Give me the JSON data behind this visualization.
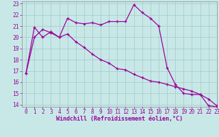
{
  "xlabel": "Windchill (Refroidissement éolien,°C)",
  "bg_color": "#c8e8e8",
  "grid_color": "#aacccc",
  "line_color": "#990099",
  "xlim": [
    -0.5,
    23
  ],
  "ylim": [
    13.8,
    23.2
  ],
  "yticks": [
    14,
    15,
    16,
    17,
    18,
    19,
    20,
    21,
    22,
    23
  ],
  "xticks": [
    0,
    1,
    2,
    3,
    4,
    5,
    6,
    7,
    8,
    9,
    10,
    11,
    12,
    13,
    14,
    15,
    16,
    17,
    18,
    19,
    20,
    21,
    22,
    23
  ],
  "line1_x": [
    0,
    1,
    2,
    3,
    4,
    5,
    6,
    7,
    8,
    9,
    10,
    11,
    12,
    13,
    14,
    15,
    16,
    17,
    18,
    19,
    20,
    21,
    22,
    23
  ],
  "line1_y": [
    16.8,
    20.0,
    20.7,
    20.4,
    20.0,
    21.7,
    21.3,
    21.2,
    21.3,
    21.1,
    21.4,
    21.4,
    21.4,
    22.9,
    22.2,
    21.7,
    21.0,
    17.3,
    15.8,
    15.0,
    14.9,
    14.9,
    13.9,
    13.8
  ],
  "line2_x": [
    0,
    1,
    2,
    3,
    4,
    5,
    6,
    7,
    8,
    9,
    10,
    11,
    12,
    13,
    14,
    15,
    16,
    17,
    18,
    19,
    20,
    21,
    22,
    23
  ],
  "line2_y": [
    16.8,
    20.9,
    20.0,
    20.5,
    20.0,
    20.3,
    19.6,
    19.1,
    18.5,
    18.0,
    17.7,
    17.2,
    17.1,
    16.7,
    16.4,
    16.1,
    16.0,
    15.8,
    15.6,
    15.4,
    15.2,
    14.9,
    14.5,
    13.9
  ],
  "tick_fontsize": 5.5,
  "xlabel_fontsize": 6.0
}
